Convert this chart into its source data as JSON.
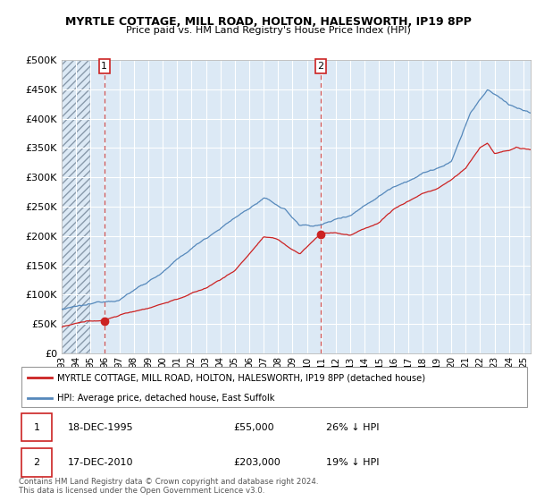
{
  "title1": "MYRTLE COTTAGE, MILL ROAD, HOLTON, HALESWORTH, IP19 8PP",
  "title2": "Price paid vs. HM Land Registry's House Price Index (HPI)",
  "ylabel_ticks": [
    "£0",
    "£50K",
    "£100K",
    "£150K",
    "£200K",
    "£250K",
    "£300K",
    "£350K",
    "£400K",
    "£450K",
    "£500K"
  ],
  "ytick_values": [
    0,
    50000,
    100000,
    150000,
    200000,
    250000,
    300000,
    350000,
    400000,
    450000,
    500000
  ],
  "ylim": [
    0,
    500000
  ],
  "xlim_start": 1993.0,
  "xlim_end": 2025.5,
  "bg_color": "#dce9f5",
  "hatch_color": "#c0c8d0",
  "sale1_x": 1995.96,
  "sale1_y": 55000,
  "sale1_label": "1",
  "sale1_date": "18-DEC-1995",
  "sale1_price": "£55,000",
  "sale1_hpi": "26% ↓ HPI",
  "sale2_x": 2010.96,
  "sale2_y": 203000,
  "sale2_label": "2",
  "sale2_date": "17-DEC-2010",
  "sale2_price": "£203,000",
  "sale2_hpi": "19% ↓ HPI",
  "red_line_color": "#cc2222",
  "blue_line_color": "#5588bb",
  "dot_color": "#cc2222",
  "vline_color": "#cc4444",
  "legend_label_red": "MYRTLE COTTAGE, MILL ROAD, HOLTON, HALESWORTH, IP19 8PP (detached house)",
  "legend_label_blue": "HPI: Average price, detached house, East Suffolk",
  "footer": "Contains HM Land Registry data © Crown copyright and database right 2024.\nThis data is licensed under the Open Government Licence v3.0.",
  "xtick_years": [
    1993,
    1994,
    1995,
    1996,
    1997,
    1998,
    1999,
    2000,
    2001,
    2002,
    2003,
    2004,
    2005,
    2006,
    2007,
    2008,
    2009,
    2010,
    2011,
    2012,
    2013,
    2014,
    2015,
    2016,
    2017,
    2018,
    2019,
    2020,
    2021,
    2022,
    2023,
    2024,
    2025
  ]
}
